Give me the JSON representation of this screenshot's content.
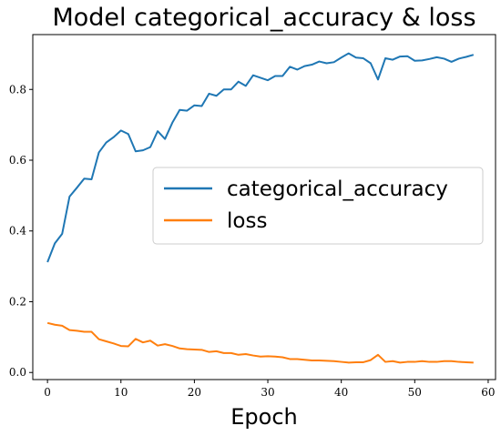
{
  "chart_data": {
    "type": "line",
    "title": "Model categorical_accuracy & loss",
    "xlabel": "Epoch",
    "ylabel": "",
    "xlim": [
      -2,
      61
    ],
    "ylim": [
      -0.02,
      0.955
    ],
    "xticks": [
      0,
      10,
      20,
      30,
      40,
      50,
      60
    ],
    "yticks": [
      0.0,
      0.2,
      0.4,
      0.6,
      0.8
    ],
    "xtick_labels": [
      "0",
      "10",
      "20",
      "30",
      "40",
      "50",
      "60"
    ],
    "ytick_labels": [
      "0.0",
      "0.2",
      "0.4",
      "0.6",
      "0.8"
    ],
    "grid": false,
    "legend_position": "center-right",
    "x": [
      0,
      1,
      2,
      3,
      4,
      5,
      6,
      7,
      8,
      9,
      10,
      11,
      12,
      13,
      14,
      15,
      16,
      17,
      18,
      19,
      20,
      21,
      22,
      23,
      24,
      25,
      26,
      27,
      28,
      29,
      30,
      31,
      32,
      33,
      34,
      35,
      36,
      37,
      38,
      39,
      40,
      41,
      42,
      43,
      44,
      45,
      46,
      47,
      48,
      49,
      50,
      51,
      52,
      53,
      54,
      55,
      56,
      57,
      58
    ],
    "series": [
      {
        "name": "categorical_accuracy",
        "color": "#1f77b4",
        "values": [
          0.312,
          0.365,
          0.392,
          0.497,
          0.522,
          0.548,
          0.546,
          0.622,
          0.65,
          0.665,
          0.684,
          0.674,
          0.625,
          0.628,
          0.637,
          0.682,
          0.66,
          0.706,
          0.742,
          0.74,
          0.755,
          0.753,
          0.788,
          0.782,
          0.8,
          0.8,
          0.822,
          0.81,
          0.84,
          0.833,
          0.826,
          0.838,
          0.838,
          0.864,
          0.856,
          0.866,
          0.87,
          0.879,
          0.874,
          0.877,
          0.89,
          0.902,
          0.89,
          0.888,
          0.874,
          0.828,
          0.888,
          0.884,
          0.893,
          0.894,
          0.881,
          0.882,
          0.886,
          0.891,
          0.887,
          0.878,
          0.887,
          0.892,
          0.898
        ]
      },
      {
        "name": "loss",
        "color": "#ff7f0e",
        "values": [
          0.14,
          0.135,
          0.132,
          0.12,
          0.118,
          0.115,
          0.115,
          0.094,
          0.088,
          0.082,
          0.075,
          0.074,
          0.095,
          0.085,
          0.09,
          0.076,
          0.08,
          0.075,
          0.068,
          0.066,
          0.065,
          0.064,
          0.058,
          0.06,
          0.055,
          0.055,
          0.05,
          0.052,
          0.048,
          0.045,
          0.046,
          0.045,
          0.043,
          0.038,
          0.038,
          0.036,
          0.034,
          0.034,
          0.033,
          0.032,
          0.03,
          0.028,
          0.029,
          0.029,
          0.035,
          0.05,
          0.03,
          0.032,
          0.028,
          0.03,
          0.03,
          0.032,
          0.03,
          0.03,
          0.032,
          0.032,
          0.03,
          0.029,
          0.028
        ]
      }
    ]
  }
}
